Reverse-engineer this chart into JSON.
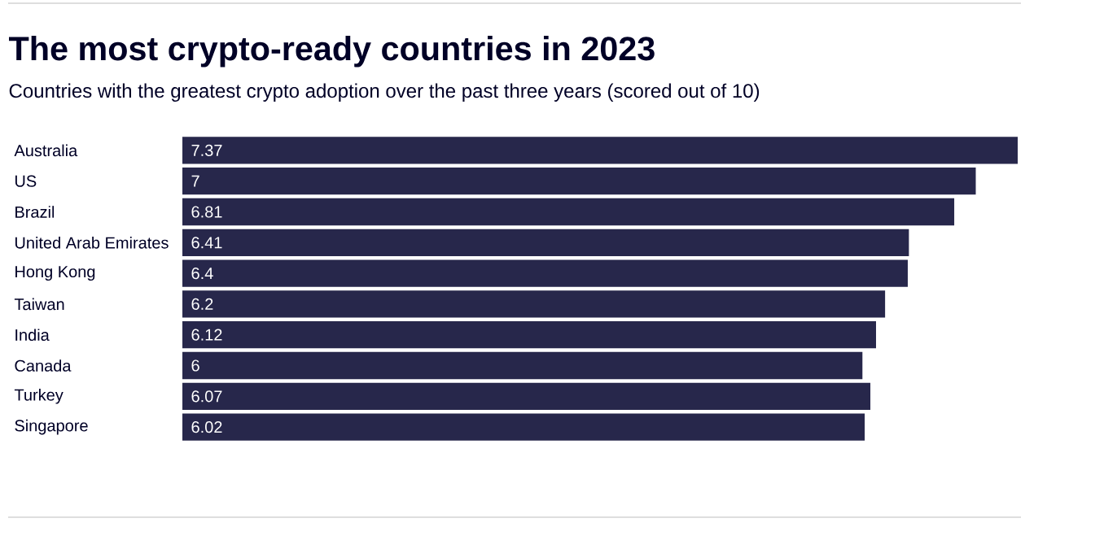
{
  "chart_data": {
    "type": "bar",
    "orientation": "horizontal",
    "data_labels": true,
    "title": "The most crypto-ready countries in 2023",
    "subtitle": "Countries with the greatest crypto adoption over the past three years (scored out of 10)",
    "categories": [
      "Australia",
      "US",
      "Brazil",
      "United Arab Emirates",
      "Hong Kong",
      "Taiwan",
      "India",
      "Canada",
      "Turkey",
      "Singapore"
    ],
    "values": [
      7.37,
      7,
      6.81,
      6.41,
      6.4,
      6.2,
      6.12,
      6,
      6.07,
      6.02
    ],
    "color": "#27274b"
  }
}
